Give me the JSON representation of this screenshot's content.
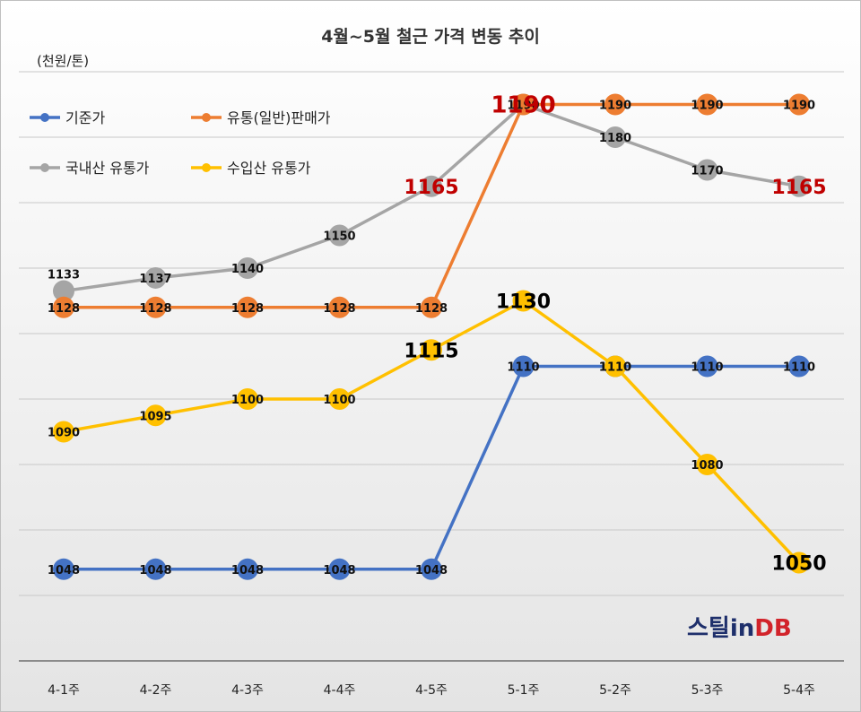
{
  "chart_data": {
    "type": "line",
    "title": "4월~5월 철근 가격 변동 추이",
    "ylabel": "(천원/톤)",
    "categories": [
      "4-1주",
      "4-2주",
      "4-3주",
      "4-4주",
      "4-5주",
      "5-1주",
      "5-2주",
      "5-3주",
      "5-4주"
    ],
    "ylim": [
      1020,
      1200
    ],
    "grid": true,
    "legend_position": "top-left",
    "series": [
      {
        "name": "기준가",
        "color": "#4472c4",
        "values": [
          1048,
          1048,
          1048,
          1048,
          1048,
          1110,
          1110,
          1110,
          1110
        ]
      },
      {
        "name": "유통(일반)판매가",
        "color": "#ed7d31",
        "values": [
          1128,
          1128,
          1128,
          1128,
          1128,
          1190,
          1190,
          1190,
          1190
        ]
      },
      {
        "name": "국내산 유통가",
        "color": "#a5a5a5",
        "values": [
          1133,
          1137,
          1140,
          1150,
          1165,
          1190,
          1180,
          1170,
          1165
        ]
      },
      {
        "name": "수입산 유통가",
        "color": "#ffc000",
        "values": [
          1090,
          1095,
          1100,
          1100,
          1115,
          1130,
          1110,
          1080,
          1050
        ]
      }
    ],
    "highlighted_labels": [
      {
        "series": "국내산 유통가",
        "index": 4,
        "color": "#c00000"
      },
      {
        "series": "국내산 유통가",
        "index": 5,
        "color": "#c00000"
      },
      {
        "series": "국내산 유통가",
        "index": 8,
        "color": "#c00000"
      },
      {
        "series": "수입산 유통가",
        "index": 4,
        "color": "#000000"
      },
      {
        "series": "수입산 유통가",
        "index": 5,
        "color": "#000000"
      },
      {
        "series": "수입산 유통가",
        "index": 8,
        "color": "#000000"
      }
    ]
  },
  "logo": {
    "part1": "스틸in",
    "part2": "DB"
  }
}
